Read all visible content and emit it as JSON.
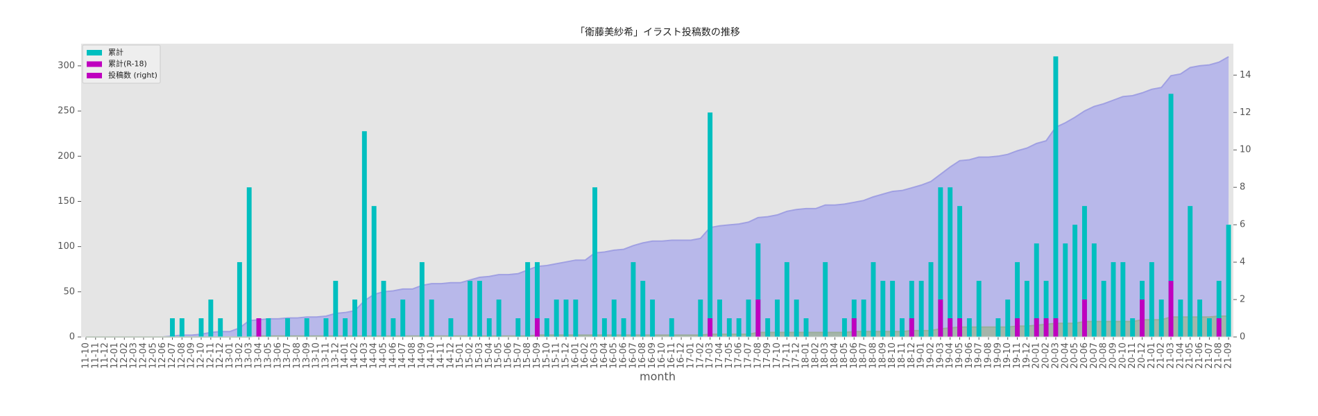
{
  "chart_data": {
    "type": "bar",
    "title": "「衛藤美紗希」イラスト投稿数の推移",
    "xlabel": "month",
    "categories": [
      "11-10",
      "11-11",
      "11-12",
      "12-01",
      "12-02",
      "12-03",
      "12-04",
      "12-05",
      "12-06",
      "12-07",
      "12-08",
      "12-09",
      "12-10",
      "12-11",
      "12-12",
      "13-01",
      "13-02",
      "13-03",
      "13-04",
      "13-05",
      "13-06",
      "13-07",
      "13-08",
      "13-09",
      "13-10",
      "13-11",
      "13-12",
      "14-01",
      "14-02",
      "14-03",
      "14-04",
      "14-05",
      "14-06",
      "14-07",
      "14-08",
      "14-09",
      "14-10",
      "14-11",
      "14-12",
      "15-01",
      "15-02",
      "15-03",
      "15-04",
      "15-05",
      "15-06",
      "15-07",
      "15-08",
      "15-09",
      "15-10",
      "15-11",
      "15-12",
      "16-01",
      "16-02",
      "16-03",
      "16-04",
      "16-05",
      "16-06",
      "16-07",
      "16-08",
      "16-09",
      "16-10",
      "16-11",
      "16-12",
      "17-01",
      "17-02",
      "17-03",
      "17-04",
      "17-05",
      "17-06",
      "17-07",
      "17-08",
      "17-09",
      "17-10",
      "17-11",
      "17-12",
      "18-01",
      "18-02",
      "18-03",
      "18-04",
      "18-05",
      "18-06",
      "18-07",
      "18-08",
      "18-09",
      "18-10",
      "18-11",
      "18-12",
      "19-01",
      "19-02",
      "19-03",
      "19-04",
      "19-05",
      "19-06",
      "19-07",
      "19-08",
      "19-09",
      "19-10",
      "19-11",
      "19-12",
      "20-01",
      "20-02",
      "20-03",
      "20-04",
      "20-05",
      "20-06",
      "20-07",
      "20-08",
      "20-09",
      "20-10",
      "20-11",
      "20-12",
      "21-01",
      "21-02",
      "21-03",
      "21-04",
      "21-05",
      "21-06",
      "21-07",
      "21-08",
      "21-09"
    ],
    "series": [
      {
        "kind": "area",
        "axis": "y",
        "color": "#b3b3ea",
        "line": "#a0a0e2",
        "values": [
          0,
          0,
          0,
          0,
          0,
          0,
          0,
          0,
          0,
          1,
          2,
          2,
          3,
          5,
          6,
          6,
          10,
          18,
          19,
          20,
          20,
          21,
          21,
          22,
          22,
          23,
          26,
          27,
          29,
          40,
          47,
          50,
          51,
          53,
          53,
          57,
          59,
          59,
          60,
          60,
          63,
          66,
          67,
          69,
          69,
          70,
          74,
          78,
          79,
          81,
          83,
          85,
          85,
          93,
          94,
          96,
          97,
          101,
          104,
          106,
          106,
          107,
          107,
          107,
          109,
          121,
          123,
          124,
          125,
          127,
          132,
          133,
          135,
          139,
          141,
          142,
          142,
          146,
          146,
          147,
          149,
          151,
          155,
          158,
          161,
          162,
          165,
          168,
          172,
          180,
          188,
          195,
          196,
          199,
          199,
          200,
          202,
          206,
          209,
          214,
          217,
          232,
          237,
          243,
          250,
          255,
          258,
          262,
          266,
          267,
          270,
          274,
          276,
          289,
          291,
          298,
          300,
          301,
          304,
          310
        ]
      },
      {
        "kind": "area",
        "axis": "y",
        "color": "#a3b5a3",
        "line": "#9aae9a",
        "values": [
          0,
          0,
          0,
          0,
          0,
          0,
          0,
          0,
          0,
          0,
          0,
          0,
          0,
          0,
          0,
          0,
          0,
          0,
          1,
          1,
          1,
          1,
          1,
          1,
          1,
          1,
          1,
          1,
          1,
          1,
          1,
          1,
          1,
          1,
          1,
          1,
          1,
          1,
          1,
          1,
          1,
          1,
          1,
          1,
          1,
          1,
          1,
          2,
          2,
          2,
          2,
          2,
          2,
          2,
          2,
          2,
          2,
          2,
          2,
          2,
          2,
          2,
          2,
          2,
          2,
          3,
          3,
          3,
          3,
          3,
          5,
          5,
          5,
          5,
          5,
          5,
          5,
          5,
          5,
          5,
          6,
          6,
          6,
          6,
          6,
          6,
          7,
          7,
          7,
          9,
          10,
          11,
          11,
          11,
          11,
          11,
          11,
          12,
          12,
          13,
          14,
          15,
          15,
          15,
          17,
          17,
          17,
          17,
          17,
          17,
          19,
          19,
          19,
          22,
          22,
          22,
          22,
          22,
          23,
          23
        ]
      },
      {
        "kind": "bar",
        "axis": "y2",
        "color": "#00bfbf",
        "values": [
          0,
          0,
          0,
          0,
          0,
          0,
          0,
          0,
          0,
          1,
          1,
          0,
          1,
          2,
          1,
          0,
          4,
          8,
          1,
          1,
          0,
          1,
          0,
          1,
          0,
          1,
          3,
          1,
          2,
          11,
          7,
          3,
          1,
          2,
          0,
          4,
          2,
          0,
          1,
          0,
          3,
          3,
          1,
          2,
          0,
          1,
          4,
          4,
          1,
          2,
          2,
          2,
          0,
          8,
          1,
          2,
          1,
          4,
          3,
          2,
          0,
          1,
          0,
          0,
          2,
          12,
          2,
          1,
          1,
          2,
          5,
          1,
          2,
          4,
          2,
          1,
          0,
          4,
          0,
          1,
          2,
          2,
          4,
          3,
          3,
          1,
          3,
          3,
          4,
          8,
          8,
          7,
          1,
          3,
          0,
          1,
          2,
          4,
          3,
          5,
          3,
          15,
          5,
          6,
          7,
          5,
          3,
          4,
          4,
          1,
          3,
          4,
          2,
          13,
          2,
          7,
          2,
          1,
          3,
          6
        ]
      },
      {
        "kind": "bar",
        "axis": "y2",
        "color": "#bf00bf",
        "values": [
          0,
          0,
          0,
          0,
          0,
          0,
          0,
          0,
          0,
          0,
          0,
          0,
          0,
          0,
          0,
          0,
          0,
          0,
          1,
          0,
          0,
          0,
          0,
          0,
          0,
          0,
          0,
          0,
          0,
          0,
          0,
          0,
          0,
          0,
          0,
          0,
          0,
          0,
          0,
          0,
          0,
          0,
          0,
          0,
          0,
          0,
          0,
          1,
          0,
          0,
          0,
          0,
          0,
          0,
          0,
          0,
          0,
          0,
          0,
          0,
          0,
          0,
          0,
          0,
          0,
          1,
          0,
          0,
          0,
          0,
          2,
          0,
          0,
          0,
          0,
          0,
          0,
          0,
          0,
          0,
          1,
          0,
          0,
          0,
          0,
          0,
          1,
          0,
          0,
          2,
          1,
          1,
          0,
          0,
          0,
          0,
          0,
          1,
          0,
          1,
          1,
          1,
          0,
          0,
          2,
          0,
          0,
          0,
          0,
          0,
          2,
          0,
          0,
          3,
          0,
          0,
          0,
          0,
          1,
          0
        ]
      }
    ],
    "legend": {
      "position": "upper left",
      "entries": [
        {
          "label": "累計",
          "color": "#00bfbf"
        },
        {
          "label": "累計(R-18)",
          "color": "#bf00bf"
        },
        {
          "label": "投稿数 (right)",
          "color": "#bf00bf"
        }
      ]
    },
    "ylim": [
      0,
      324.5
    ],
    "yticks": [
      0,
      50,
      100,
      150,
      200,
      250,
      300
    ],
    "y2lim": [
      0,
      15.68
    ],
    "y2ticks": [
      0,
      2,
      4,
      6,
      8,
      10,
      12,
      14
    ],
    "grid": false,
    "background": "#e5e5e5"
  }
}
